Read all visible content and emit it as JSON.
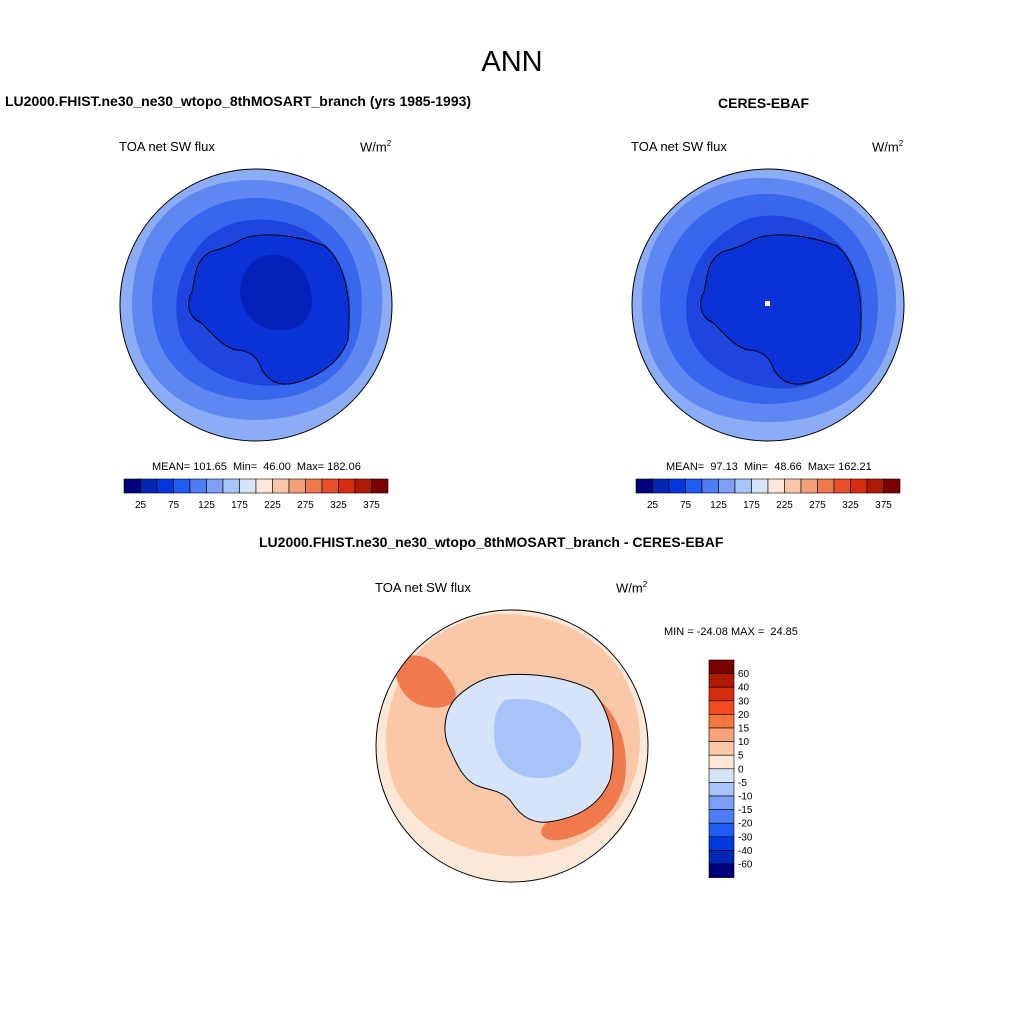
{
  "title": "ANN",
  "panels": [
    {
      "title": "LU2000.FHIST.ne30_ne30_wtopo_8thMOSART_branch (yrs 1985-1993)",
      "variable": "TOA net SW flux",
      "units": "W/m",
      "units_sup": "2",
      "stats": "MEAN= 101.65  Min=  46.00  Max= 182.06"
    },
    {
      "title": "CERES-EBAF",
      "variable": "TOA net SW flux",
      "units": "W/m",
      "units_sup": "2",
      "stats": "MEAN=  97.13  Min=  48.66  Max= 162.21"
    },
    {
      "title": "LU2000.FHIST.ne30_ne30_wtopo_8thMOSART_branch - CERES-EBAF",
      "variable": "TOA net SW flux",
      "units": "W/m",
      "units_sup": "2",
      "stats": "MIN = -24.08 MAX =  24.85"
    }
  ],
  "colorbar_abs": {
    "tick_labels": [
      "25",
      "75",
      "125",
      "175",
      "225",
      "275",
      "325",
      "375"
    ],
    "colors": [
      "#00007f",
      "#0026b3",
      "#0038e0",
      "#1f5cf2",
      "#4c7df5",
      "#7ba0f6",
      "#a8c3f7",
      "#d6e4fa",
      "#fde8d8",
      "#f9c6a8",
      "#f5a07a",
      "#f07a4e",
      "#e8502a",
      "#d62d0c",
      "#b01a00",
      "#7a0000"
    ]
  },
  "colorbar_diff": {
    "labels": [
      "60",
      "40",
      "30",
      "20",
      "15",
      "10",
      "5",
      "0",
      "-5",
      "-10",
      "-15",
      "-20",
      "-30",
      "-40",
      "-60"
    ],
    "colors": [
      "#7a0000",
      "#b01a00",
      "#d62d0c",
      "#f24a1c",
      "#f5773f",
      "#f7a27a",
      "#fac7a8",
      "#fde8d8",
      "#d6e4fa",
      "#a8c3f7",
      "#7ba0f6",
      "#4c7df5",
      "#1f5cf2",
      "#0038e0",
      "#0026b3",
      "#00007f"
    ]
  },
  "colors": {
    "ocean_outer": "#8cadf5",
    "ocean_mid": "#5e87f2",
    "ocean_inner": "#3866ec",
    "ice_shelf": "#1e45e0",
    "continent": "#0a32d6",
    "interior_low": "#0422b8",
    "diff_background": "#fde8d8",
    "diff_pos1": "#fac7a8",
    "diff_pos2": "#f7a27a",
    "diff_pos3": "#f07a4e",
    "diff_neg1": "#d6e4fa",
    "diff_neg2": "#a8c3f7"
  }
}
